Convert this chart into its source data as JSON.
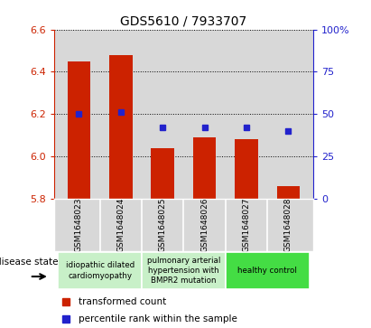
{
  "title": "GDS5610 / 7933707",
  "samples": [
    "GSM1648023",
    "GSM1648024",
    "GSM1648025",
    "GSM1648026",
    "GSM1648027",
    "GSM1648028"
  ],
  "transformed_count": [
    6.45,
    6.48,
    6.04,
    6.09,
    6.08,
    5.86
  ],
  "percentile_rank": [
    50,
    51,
    42,
    42,
    42,
    40
  ],
  "ylim_left": [
    5.8,
    6.6
  ],
  "ylim_right": [
    0,
    100
  ],
  "yticks_left": [
    5.8,
    6.0,
    6.2,
    6.4,
    6.6
  ],
  "yticks_right": [
    0,
    25,
    50,
    75,
    100
  ],
  "bar_color": "#cc2200",
  "dot_color": "#2222cc",
  "disease_groups": [
    {
      "label": "idiopathic dilated\ncardiomyopathy",
      "samples": [
        0,
        1
      ],
      "color": "#c8f0c8"
    },
    {
      "label": "pulmonary arterial\nhypertension with\nBMPR2 mutation",
      "samples": [
        2,
        3
      ],
      "color": "#c8f0c8"
    },
    {
      "label": "healthy control",
      "samples": [
        4,
        5
      ],
      "color": "#44dd44"
    }
  ],
  "legend_tc": "transformed count",
  "legend_pr": "percentile rank within the sample",
  "disease_state_label": "disease state",
  "background_color": "#ffffff",
  "plot_bg_color": "#d8d8d8",
  "left_axis_color": "#cc2200",
  "right_axis_color": "#2222cc"
}
